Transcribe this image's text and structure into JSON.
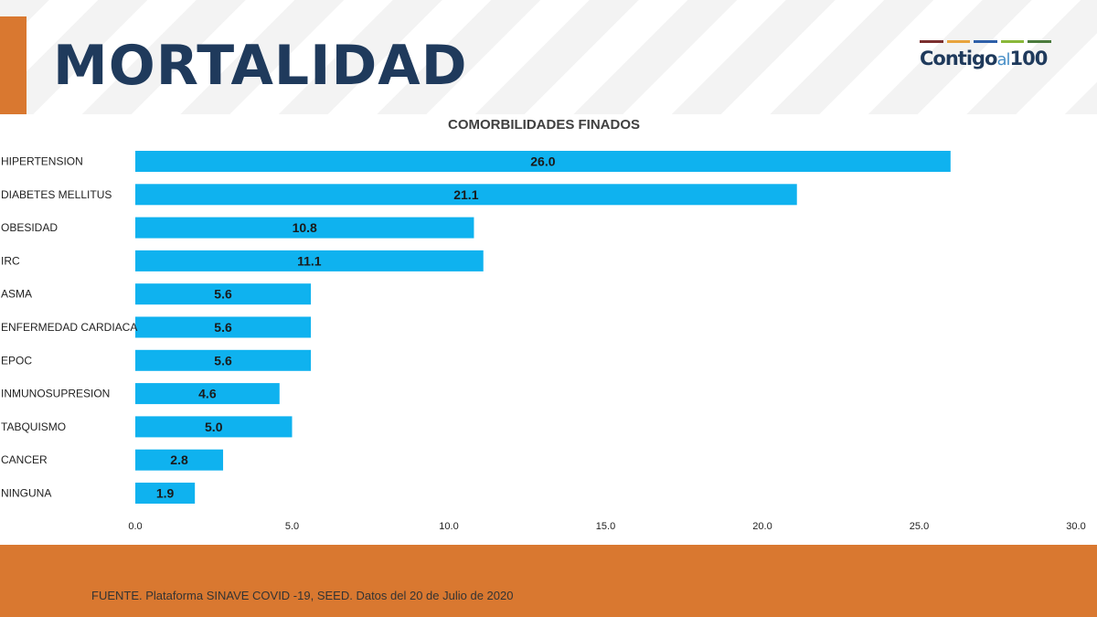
{
  "header": {
    "title": "MORTALIDAD"
  },
  "logo": {
    "part1": "Contigo",
    "part2": "al",
    "part3": "100",
    "stripe_colors": [
      "#7a2e2e",
      "#e8a33d",
      "#2e5fa8",
      "#8ab83a",
      "#4a7a3c"
    ]
  },
  "colors": {
    "accent": "#d97830",
    "title": "#1f3a5c",
    "bar": "#0fb2ef",
    "bar_label": "#1a1a1a",
    "axis_text": "#222222"
  },
  "footer": {
    "source": "FUENTE. Plataforma SINAVE COVID -19, SEED. Datos del 20 de Julio de 2020"
  },
  "chart_data": {
    "type": "bar",
    "orientation": "horizontal",
    "title": "COMORBILIDADES FINADOS",
    "categories": [
      "HIPERTENSION",
      "DIABETES MELLITUS",
      "OBESIDAD",
      "IRC",
      "ASMA",
      "ENFERMEDAD CARDIACA",
      "EPOC",
      "INMUNOSUPRESION",
      "TABQUISMO",
      "CANCER",
      "NINGUNA"
    ],
    "values": [
      26.0,
      21.1,
      10.8,
      11.1,
      5.6,
      5.6,
      5.6,
      4.6,
      5.0,
      2.8,
      1.9
    ],
    "value_labels": [
      "26.0",
      "21.1",
      "10.8",
      "11.1",
      "5.6",
      "5.6",
      "5.6",
      "4.6",
      "5.0",
      "2.8",
      "1.9"
    ],
    "xlim": [
      0,
      30
    ],
    "xticks": [
      "0.0",
      "5.0",
      "10.0",
      "15.0",
      "20.0",
      "25.0",
      "30.0"
    ],
    "grid": false,
    "legend": "none"
  }
}
